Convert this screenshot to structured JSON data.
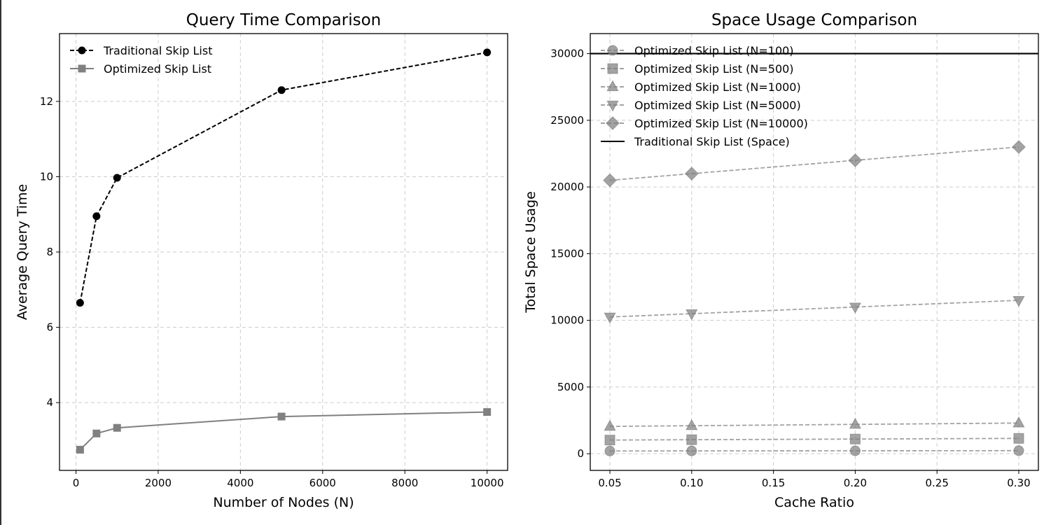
{
  "chart_data": [
    {
      "type": "line",
      "title": "Query Time Comparison",
      "xlabel": "Number of Nodes (N)",
      "ylabel": "Average Query Time",
      "xlim": [
        -400,
        10500
      ],
      "ylim": [
        2.2,
        13.8
      ],
      "xticks": [
        0,
        2000,
        4000,
        6000,
        8000,
        10000
      ],
      "yticks": [
        4,
        6,
        8,
        10,
        12
      ],
      "grid": true,
      "legend_position": "upper-left",
      "x": [
        100,
        500,
        1000,
        5000,
        10000
      ],
      "series": [
        {
          "name": "Traditional Skip List",
          "values": [
            6.65,
            8.95,
            9.97,
            12.3,
            13.3
          ],
          "color": "#000000",
          "dash": "dashed",
          "marker": "circle"
        },
        {
          "name": "Optimized Skip List",
          "values": [
            2.75,
            3.18,
            3.33,
            3.63,
            3.75
          ],
          "color": "#808080",
          "dash": "solid",
          "marker": "square"
        }
      ]
    },
    {
      "type": "line",
      "title": "Space Usage Comparison",
      "xlabel": "Cache Ratio",
      "ylabel": "Total Space Usage",
      "xlim": [
        0.038,
        0.312
      ],
      "ylim": [
        -1250,
        31500
      ],
      "xticks": [
        0.05,
        0.1,
        0.15,
        0.2,
        0.25,
        0.3
      ],
      "xtick_labels": [
        "0.05",
        "0.10",
        "0.15",
        "0.20",
        "0.25",
        "0.30"
      ],
      "yticks": [
        0,
        5000,
        10000,
        15000,
        20000,
        25000,
        30000
      ],
      "grid": true,
      "legend_position": "upper-left",
      "x": [
        0.05,
        0.1,
        0.2,
        0.3
      ],
      "series": [
        {
          "name": "Optimized Skip List (N=100)",
          "values": [
            205,
            210,
            220,
            230
          ],
          "color": "#808080",
          "dash": "dashed",
          "marker": "circle"
        },
        {
          "name": "Optimized Skip List (N=500)",
          "values": [
            1025,
            1050,
            1100,
            1150
          ],
          "color": "#808080",
          "dash": "dashed",
          "marker": "square"
        },
        {
          "name": "Optimized Skip List (N=1000)",
          "values": [
            2050,
            2100,
            2200,
            2300
          ],
          "color": "#808080",
          "dash": "dashed",
          "marker": "triangle-up"
        },
        {
          "name": "Optimized Skip List (N=5000)",
          "values": [
            10250,
            10500,
            11000,
            11500
          ],
          "color": "#808080",
          "dash": "dashed",
          "marker": "triangle-down"
        },
        {
          "name": "Optimized Skip List (N=10000)",
          "values": [
            20500,
            21000,
            22000,
            23000
          ],
          "color": "#808080",
          "dash": "dashed",
          "marker": "diamond"
        }
      ],
      "hlines": [
        {
          "name": "Traditional Skip List (Space)",
          "value": 30000,
          "color": "#000000",
          "dash": "solid"
        }
      ]
    }
  ]
}
